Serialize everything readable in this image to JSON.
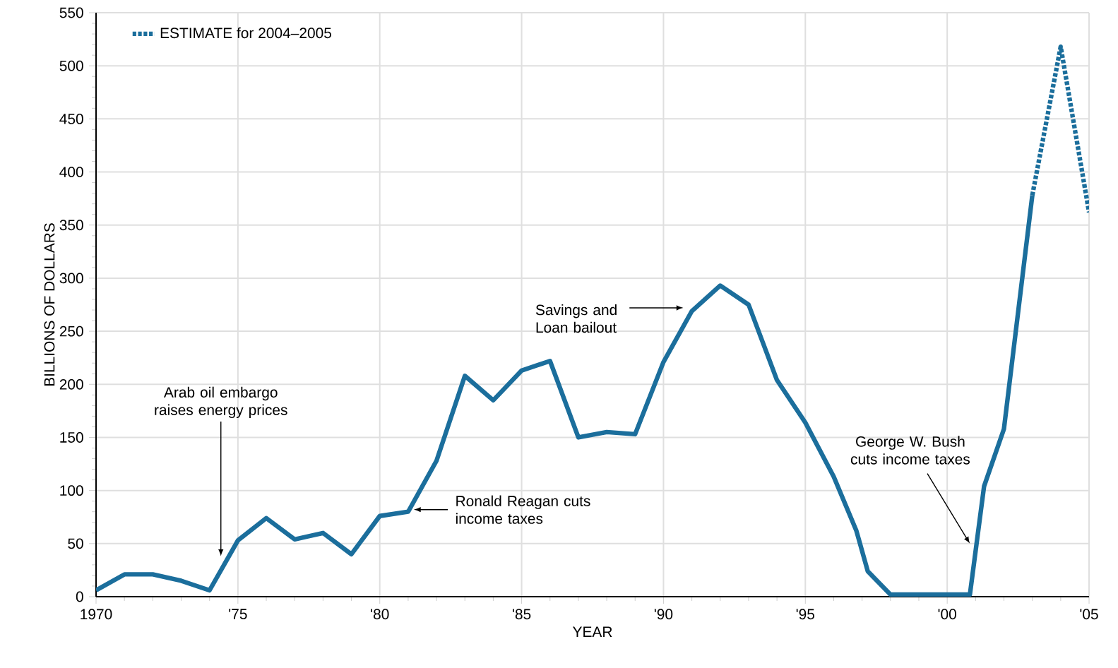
{
  "chart_data": {
    "type": "line",
    "xlabel": "YEAR",
    "ylabel": "BILLIONS OF DOLLARS",
    "series": [
      {
        "color": "#1b6e9c",
        "line_style": "solid",
        "x": [
          1970,
          1971,
          1972,
          1973,
          1974,
          1975,
          1976,
          1977,
          1978,
          1979,
          1980,
          1981,
          1982,
          1983,
          1984,
          1985,
          1986,
          1987,
          1988,
          1989,
          1990,
          1991,
          1992,
          1993,
          1994,
          1995,
          1996,
          1996.8,
          1997.2,
          1998,
          2000.8,
          2001.3,
          2002,
          2003
        ],
        "values": [
          6,
          21,
          21,
          15,
          6,
          53,
          74,
          54,
          60,
          40,
          76,
          80,
          128,
          208,
          185,
          213,
          222,
          150,
          155,
          153,
          221,
          269,
          293,
          275,
          204,
          164,
          113,
          62,
          24,
          2,
          2,
          104,
          158,
          378
        ]
      },
      {
        "name": "ESTIMATE for 2004–2005",
        "color": "#1b6e9c",
        "line_style": "dashed",
        "x": [
          2003,
          2004,
          2005
        ],
        "values": [
          378,
          518,
          362
        ]
      }
    ],
    "xlim": [
      1970,
      2005
    ],
    "xticks": [
      {
        "value": 1970,
        "label": "1970"
      },
      {
        "value": 1975,
        "label": "'75"
      },
      {
        "value": 1980,
        "label": "'80"
      },
      {
        "value": 1985,
        "label": "'85"
      },
      {
        "value": 1990,
        "label": "'90"
      },
      {
        "value": 1995,
        "label": "'95"
      },
      {
        "value": 2000,
        "label": "'00"
      },
      {
        "value": 2005,
        "label": "'05"
      }
    ],
    "ylim": [
      0,
      550
    ],
    "yticks": [
      0,
      50,
      100,
      150,
      200,
      250,
      300,
      350,
      400,
      450,
      500,
      550
    ],
    "grid": true,
    "legend": "top left",
    "annotations": [
      "Arab oil embargo raises energy prices",
      {
        "text": "Ronald Reagan cuts income taxes",
        "x": 1981.2,
        "y": 82
      },
      "Savings and Loan bailout",
      "George W. Bush cuts income taxes"
    ]
  }
}
